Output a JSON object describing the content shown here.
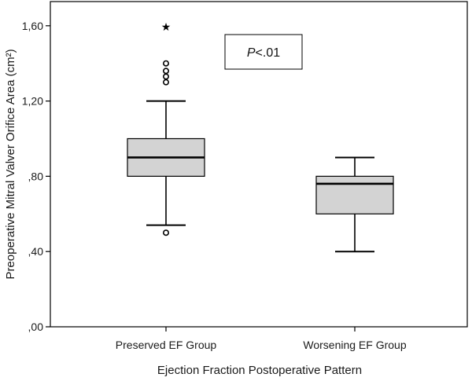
{
  "chart_data": {
    "type": "box",
    "ylabel": "Preoperative Mitral Valver Orifice Area (cm²)",
    "xlabel": "Ejection Fraction Postoperative Pattern",
    "ylim": [
      0,
      1.65
    ],
    "yticks": [
      {
        "value": 0.0,
        "label": ",00"
      },
      {
        "value": 0.4,
        "label": ",40"
      },
      {
        "value": 0.8,
        "label": ",80"
      },
      {
        "value": 1.2,
        "label": "1,20"
      },
      {
        "value": 1.6,
        "label": "1,60"
      }
    ],
    "categories": [
      "Preserved EF Group",
      "Worsening EF Group"
    ],
    "boxes": [
      {
        "category": "Preserved EF Group",
        "whisker_low": 0.54,
        "q1": 0.8,
        "median": 0.9,
        "q3": 1.0,
        "whisker_high": 1.2,
        "outliers": [
          0.5,
          1.3,
          1.33,
          1.36,
          1.4
        ],
        "extremes": [
          1.6
        ]
      },
      {
        "category": "Worsening EF Group",
        "whisker_low": 0.4,
        "q1": 0.6,
        "median": 0.76,
        "q3": 0.8,
        "whisker_high": 0.9,
        "outliers": [],
        "extremes": []
      }
    ],
    "box_color": "#d3d3d3",
    "grid": false,
    "annotation": {
      "prefix": "P",
      "text": "<.01"
    }
  }
}
